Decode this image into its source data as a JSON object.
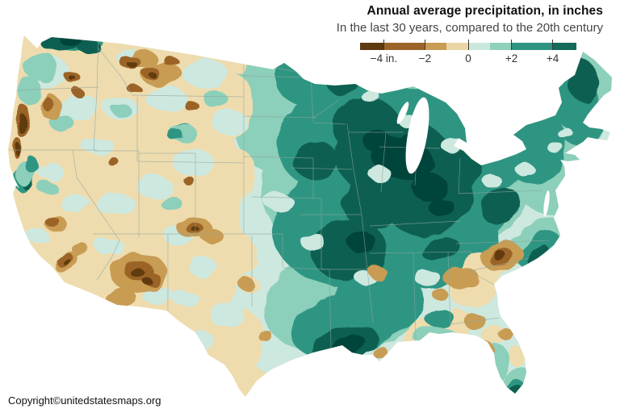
{
  "header": {
    "title": "Annual average precipitation, in inches",
    "subtitle": "In the last 30 years, compared to the 20th century"
  },
  "legend": {
    "ticks": [
      {
        "label": "−4 in.",
        "pos": 0.11
      },
      {
        "label": "−2",
        "pos": 0.3
      },
      {
        "label": "0",
        "pos": 0.5
      },
      {
        "label": "+2",
        "pos": 0.7
      },
      {
        "label": "+4",
        "pos": 0.89
      }
    ],
    "segments": [
      {
        "from": 0.0,
        "to": 0.11,
        "color": "#5e3a10"
      },
      {
        "from": 0.11,
        "to": 0.3,
        "color": "#9b6326"
      },
      {
        "from": 0.3,
        "to": 0.4,
        "color": "#c89c52"
      },
      {
        "from": 0.4,
        "to": 0.5,
        "color": "#e9d6a4"
      },
      {
        "from": 0.5,
        "to": 0.6,
        "color": "#cbe8dd"
      },
      {
        "from": 0.6,
        "to": 0.7,
        "color": "#8fd0bb"
      },
      {
        "from": 0.7,
        "to": 0.89,
        "color": "#2e9481"
      },
      {
        "from": 0.89,
        "to": 1.0,
        "color": "#156a59"
      }
    ]
  },
  "map": {
    "palette": [
      "#5e3a10",
      "#9b6326",
      "#c89c52",
      "#eedcae",
      "#cde8df",
      "#8ccfba",
      "#2f9582",
      "#0e6151",
      "#06453a"
    ],
    "base_color_index": 3,
    "water_color": "#ffffff",
    "border_color": "#8fa6a0",
    "patches": [
      [
        4,
        560,
        120,
        190,
        70,
        0
      ],
      [
        4,
        480,
        250,
        185,
        150,
        0
      ],
      [
        4,
        630,
        280,
        120,
        120,
        0
      ],
      [
        4,
        395,
        390,
        110,
        90,
        0
      ],
      [
        4,
        360,
        140,
        75,
        95,
        0
      ],
      [
        4,
        625,
        430,
        50,
        70,
        0
      ],
      [
        4,
        700,
        150,
        60,
        90,
        0
      ],
      [
        4,
        315,
        95,
        30,
        20,
        0
      ],
      [
        5,
        555,
        135,
        150,
        60,
        4
      ],
      [
        5,
        465,
        235,
        140,
        105,
        0
      ],
      [
        5,
        575,
        235,
        80,
        65,
        0
      ],
      [
        5,
        672,
        175,
        65,
        95,
        -20
      ],
      [
        5,
        725,
        110,
        35,
        45,
        0
      ],
      [
        5,
        425,
        375,
        100,
        65,
        -8
      ],
      [
        5,
        340,
        130,
        55,
        85,
        0
      ],
      [
        5,
        668,
        300,
        40,
        24,
        -35
      ],
      [
        5,
        636,
        475,
        26,
        14,
        -35
      ],
      [
        5,
        540,
        418,
        28,
        12,
        0
      ],
      [
        5,
        615,
        448,
        16,
        22,
        0
      ],
      [
        5,
        330,
        85,
        25,
        15,
        0
      ],
      [
        3,
        295,
        215,
        22,
        30,
        0
      ],
      [
        3,
        296,
        315,
        22,
        26,
        0
      ],
      [
        3,
        300,
        420,
        28,
        35,
        0
      ],
      [
        3,
        308,
        352,
        12,
        10,
        0
      ],
      [
        3,
        288,
        130,
        25,
        40,
        0
      ],
      [
        3,
        290,
        70,
        22,
        20,
        0
      ],
      [
        6,
        478,
        188,
        115,
        85,
        8
      ],
      [
        6,
        432,
        282,
        95,
        75,
        0
      ],
      [
        6,
        532,
        298,
        85,
        60,
        0
      ],
      [
        6,
        398,
        178,
        55,
        55,
        0
      ],
      [
        6,
        385,
        95,
        45,
        38,
        0
      ],
      [
        6,
        440,
        112,
        48,
        32,
        0
      ],
      [
        6,
        545,
        135,
        50,
        32,
        0
      ],
      [
        6,
        598,
        205,
        55,
        38,
        -18
      ],
      [
        6,
        655,
        175,
        45,
        55,
        -30
      ],
      [
        6,
        710,
        120,
        30,
        42,
        -10
      ],
      [
        6,
        725,
        165,
        25,
        14,
        -20
      ],
      [
        6,
        425,
        405,
        65,
        40,
        -12
      ],
      [
        6,
        470,
        372,
        55,
        42,
        0
      ],
      [
        6,
        668,
        310,
        30,
        18,
        -38
      ],
      [
        6,
        96,
        52,
        30,
        13,
        0
      ],
      [
        6,
        30,
        222,
        13,
        17,
        0
      ],
      [
        6,
        228,
        163,
        13,
        9,
        0
      ],
      [
        6,
        636,
        482,
        14,
        8,
        -35
      ],
      [
        6,
        545,
        395,
        18,
        12,
        0
      ],
      [
        6,
        598,
        260,
        35,
        28,
        -20
      ],
      [
        7,
        490,
        198,
        75,
        55,
        12
      ],
      [
        7,
        455,
        158,
        42,
        36,
        0
      ],
      [
        7,
        532,
        248,
        55,
        42,
        -18
      ],
      [
        7,
        432,
        310,
        48,
        38,
        0
      ],
      [
        7,
        462,
        252,
        38,
        32,
        0
      ],
      [
        7,
        428,
        428,
        42,
        22,
        -18
      ],
      [
        7,
        392,
        200,
        28,
        24,
        0
      ],
      [
        7,
        568,
        212,
        32,
        25,
        -18
      ],
      [
        7,
        620,
        255,
        26,
        20,
        -30
      ],
      [
        7,
        75,
        52,
        26,
        12,
        0
      ],
      [
        7,
        110,
        58,
        14,
        9,
        0
      ],
      [
        7,
        722,
        100,
        20,
        26,
        -10
      ],
      [
        7,
        678,
        125,
        14,
        18,
        0
      ],
      [
        7,
        668,
        318,
        16,
        10,
        -40
      ],
      [
        7,
        545,
        308,
        24,
        14,
        -15
      ],
      [
        7,
        636,
        486,
        12,
        6,
        -35
      ],
      [
        7,
        35,
        228,
        7,
        9,
        0
      ],
      [
        7,
        662,
        108,
        16,
        12,
        0
      ],
      [
        7,
        55,
        95,
        8,
        10,
        0
      ],
      [
        7,
        425,
        105,
        20,
        12,
        0
      ],
      [
        8,
        498,
        196,
        40,
        26,
        15
      ],
      [
        8,
        532,
        232,
        22,
        18,
        0
      ],
      [
        8,
        466,
        174,
        18,
        13,
        0
      ],
      [
        8,
        428,
        430,
        26,
        12,
        -20
      ],
      [
        8,
        448,
        300,
        18,
        13,
        0
      ],
      [
        8,
        548,
        258,
        16,
        12,
        0
      ],
      [
        8,
        88,
        50,
        14,
        7,
        0
      ],
      [
        8,
        508,
        175,
        15,
        11,
        0
      ],
      [
        3,
        600,
        332,
        32,
        18,
        -15
      ],
      [
        3,
        585,
        362,
        28,
        20,
        0
      ],
      [
        3,
        612,
        415,
        16,
        11,
        0
      ],
      [
        3,
        640,
        442,
        10,
        14,
        -20
      ],
      [
        4,
        470,
        215,
        14,
        9,
        0
      ],
      [
        4,
        505,
        150,
        12,
        8,
        0
      ],
      [
        4,
        560,
        180,
        14,
        9,
        0
      ],
      [
        4,
        610,
        225,
        12,
        8,
        0
      ],
      [
        4,
        650,
        210,
        12,
        8,
        0
      ],
      [
        4,
        690,
        185,
        10,
        7,
        0
      ],
      [
        4,
        530,
        345,
        16,
        10,
        0
      ],
      [
        4,
        452,
        345,
        12,
        8,
        0
      ],
      [
        4,
        388,
        300,
        16,
        10,
        0
      ],
      [
        4,
        345,
        250,
        18,
        11,
        0
      ],
      [
        4,
        700,
        165,
        10,
        6,
        0
      ],
      [
        4,
        460,
        120,
        12,
        8,
        0
      ],
      [
        4,
        60,
        90,
        26,
        20,
        0
      ],
      [
        4,
        95,
        132,
        28,
        16,
        0
      ],
      [
        4,
        150,
        135,
        22,
        13,
        0
      ],
      [
        4,
        205,
        122,
        26,
        14,
        0
      ],
      [
        4,
        255,
        92,
        28,
        18,
        0
      ],
      [
        4,
        285,
        152,
        22,
        16,
        0
      ],
      [
        4,
        240,
        202,
        26,
        17,
        0
      ],
      [
        4,
        192,
        232,
        22,
        13,
        0
      ],
      [
        4,
        142,
        252,
        24,
        14,
        0
      ],
      [
        4,
        92,
        252,
        18,
        12,
        0
      ],
      [
        4,
        222,
        292,
        20,
        12,
        0
      ],
      [
        4,
        252,
        332,
        18,
        12,
        0
      ],
      [
        4,
        197,
        367,
        20,
        11,
        0
      ],
      [
        4,
        282,
        392,
        22,
        14,
        0
      ],
      [
        4,
        247,
        422,
        18,
        11,
        0
      ],
      [
        4,
        62,
        212,
        16,
        10,
        0
      ],
      [
        4,
        122,
        182,
        20,
        11,
        0
      ],
      [
        4,
        162,
        72,
        18,
        11,
        0
      ],
      [
        4,
        312,
        62,
        20,
        12,
        0
      ],
      [
        4,
        135,
        305,
        18,
        11,
        0
      ],
      [
        4,
        180,
        400,
        16,
        10,
        0
      ],
      [
        4,
        230,
        370,
        16,
        10,
        0
      ],
      [
        4,
        45,
        292,
        14,
        9,
        0
      ],
      [
        5,
        50,
        82,
        22,
        16,
        0
      ],
      [
        5,
        36,
        112,
        13,
        18,
        0
      ],
      [
        5,
        76,
        152,
        15,
        10,
        0
      ],
      [
        5,
        32,
        216,
        12,
        16,
        0
      ],
      [
        5,
        228,
        166,
        17,
        11,
        0
      ],
      [
        5,
        266,
        122,
        15,
        10,
        0
      ],
      [
        5,
        212,
        252,
        13,
        9,
        0
      ],
      [
        5,
        152,
        138,
        12,
        8,
        0
      ],
      [
        5,
        58,
        232,
        12,
        8,
        0
      ],
      [
        5,
        58,
        85,
        14,
        18,
        0
      ],
      [
        6,
        218,
        168,
        10,
        7,
        0
      ],
      [
        6,
        40,
        205,
        8,
        10,
        0
      ],
      [
        2,
        172,
        338,
        36,
        24,
        0
      ],
      [
        2,
        148,
        368,
        20,
        12,
        0
      ],
      [
        2,
        240,
        282,
        22,
        13,
        0
      ],
      [
        2,
        262,
        292,
        14,
        9,
        0
      ],
      [
        2,
        82,
        325,
        16,
        10,
        -35
      ],
      [
        2,
        100,
        310,
        10,
        7,
        -35
      ],
      [
        2,
        200,
        92,
        26,
        15,
        0
      ],
      [
        2,
        176,
        72,
        18,
        11,
        0
      ],
      [
        2,
        62,
        132,
        12,
        16,
        0
      ],
      [
        2,
        305,
        352,
        10,
        8,
        0
      ],
      [
        2,
        330,
        418,
        9,
        7,
        0
      ],
      [
        2,
        622,
        318,
        26,
        18,
        -10
      ],
      [
        2,
        572,
        345,
        22,
        14,
        0
      ],
      [
        2,
        588,
        398,
        14,
        9,
        0
      ],
      [
        2,
        600,
        432,
        12,
        9,
        0
      ],
      [
        2,
        628,
        415,
        10,
        7,
        0
      ],
      [
        2,
        468,
        338,
        11,
        8,
        0
      ],
      [
        2,
        472,
        438,
        10,
        7,
        0
      ],
      [
        2,
        502,
        442,
        8,
        6,
        0
      ],
      [
        2,
        545,
        365,
        10,
        7,
        0
      ],
      [
        2,
        70,
        278,
        14,
        9,
        0
      ],
      [
        1,
        28,
        150,
        7,
        20,
        8
      ],
      [
        1,
        22,
        184,
        6,
        13,
        0
      ],
      [
        1,
        90,
        96,
        9,
        7,
        0
      ],
      [
        1,
        96,
        114,
        7,
        5,
        0
      ],
      [
        1,
        160,
        76,
        13,
        8,
        0
      ],
      [
        1,
        186,
        90,
        11,
        7,
        0
      ],
      [
        1,
        212,
        76,
        9,
        6,
        0
      ],
      [
        1,
        236,
        130,
        9,
        6,
        0
      ],
      [
        1,
        166,
        110,
        9,
        5,
        0
      ],
      [
        1,
        172,
        336,
        18,
        12,
        0
      ],
      [
        1,
        188,
        346,
        11,
        8,
        0
      ],
      [
        1,
        80,
        322,
        11,
        7,
        -35
      ],
      [
        1,
        242,
        284,
        11,
        7,
        0
      ],
      [
        1,
        140,
        200,
        7,
        5,
        0
      ],
      [
        1,
        235,
        225,
        7,
        5,
        0
      ],
      [
        1,
        58,
        128,
        6,
        9,
        0
      ],
      [
        1,
        620,
        318,
        16,
        11,
        -10
      ],
      [
        1,
        66,
        276,
        9,
        6,
        0
      ],
      [
        0,
        27,
        153,
        4,
        12,
        8
      ],
      [
        0,
        23,
        186,
        4,
        8,
        0
      ],
      [
        0,
        90,
        97,
        4,
        3,
        0
      ],
      [
        0,
        170,
        338,
        9,
        5,
        0
      ],
      [
        0,
        182,
        348,
        6,
        4,
        0
      ],
      [
        0,
        162,
        78,
        6,
        4,
        0
      ],
      [
        0,
        188,
        92,
        5,
        3,
        0
      ],
      [
        0,
        82,
        324,
        5,
        3,
        -35
      ],
      [
        0,
        244,
        286,
        5,
        3,
        0
      ],
      [
        0,
        617,
        315,
        8,
        6,
        0
      ]
    ]
  },
  "footer": {
    "copyright": "Copyright©unitedstatesmaps.org"
  }
}
